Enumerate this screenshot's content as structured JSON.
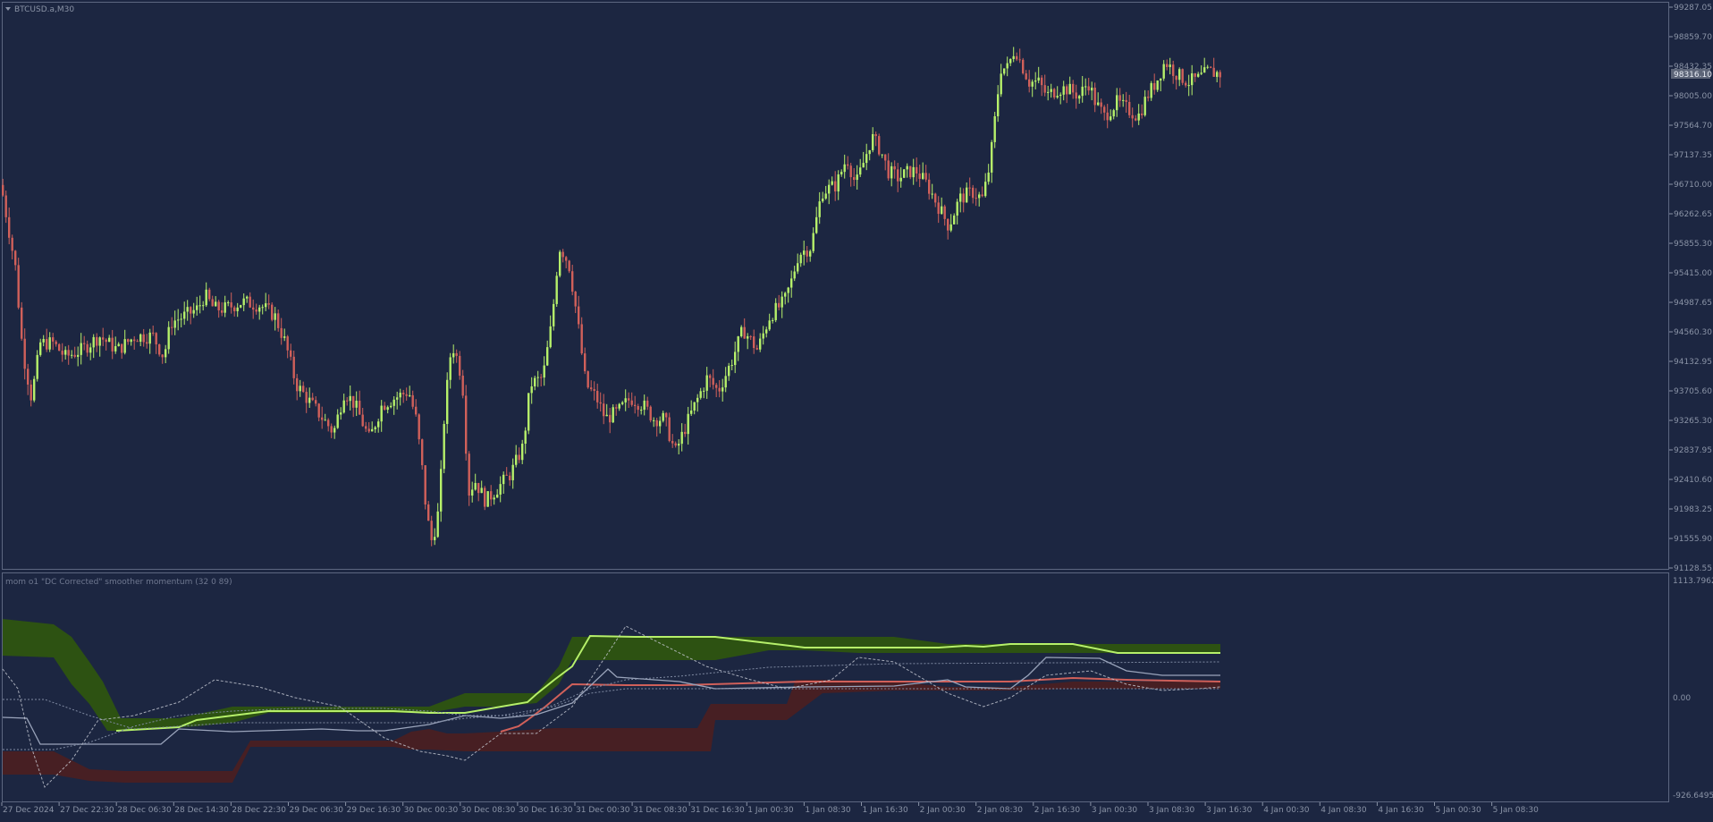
{
  "main": {
    "title": "BTCUSD.a,M30",
    "price_ticks": [
      "99287.05",
      "98859.70",
      "98432.35",
      "98005.00",
      "97564.70",
      "97137.35",
      "96710.00",
      "96262.65",
      "95855.30",
      "95415.00",
      "94987.65",
      "94560.30",
      "94132.95",
      "93705.60",
      "93265.30",
      "92837.95",
      "92410.60",
      "91983.25",
      "91555.90",
      "91128.55"
    ],
    "current_price": "98316.10"
  },
  "indicator": {
    "title": "mom o1 \"DC Corrected\" smoother momentum (32 0 89)",
    "ticks": [
      "1113.7962",
      "0.00",
      "-926.6495"
    ]
  },
  "time_axis": {
    "labels": [
      "27 Dec 2024",
      "27 Dec 22:30",
      "28 Dec 06:30",
      "28 Dec 14:30",
      "28 Dec 22:30",
      "29 Dec 06:30",
      "29 Dec 16:30",
      "30 Dec 00:30",
      "30 Dec 08:30",
      "30 Dec 16:30",
      "31 Dec 00:30",
      "31 Dec 08:30",
      "31 Dec 16:30",
      "1 Jan 00:30",
      "1 Jan 08:30",
      "1 Jan 16:30",
      "2 Jan 00:30",
      "2 Jan 08:30",
      "2 Jan 16:30",
      "3 Jan 00:30",
      "3 Jan 08:30",
      "3 Jan 16:30",
      "4 Jan 00:30",
      "4 Jan 08:30",
      "4 Jan 16:30",
      "5 Jan 00:30",
      "5 Jan 08:30"
    ]
  },
  "colors": {
    "background": "#1c2641",
    "bull": "#b6f06a",
    "bear": "#d0605a",
    "axis_text": "#8a93a6",
    "upper_band": "#2e5410",
    "lower_band": "#4a1f22"
  },
  "chart_data": [
    {
      "type": "candlestick",
      "title": "BTCUSD.a,M30",
      "ylim": [
        91128.55,
        99287.05
      ],
      "x": [
        "27 Dec 2024",
        "27 Dec 22:30",
        "28 Dec 06:30",
        "28 Dec 14:30",
        "28 Dec 22:30",
        "29 Dec 06:30",
        "29 Dec 16:30",
        "30 Dec 00:30",
        "30 Dec 08:30",
        "30 Dec 16:30",
        "31 Dec 00:30",
        "31 Dec 08:30",
        "31 Dec 16:30",
        "1 Jan 00:30",
        "1 Jan 08:30",
        "1 Jan 16:30",
        "2 Jan 00:30",
        "2 Jan 08:30",
        "2 Jan 16:30",
        "3 Jan 00:30",
        "3 Jan 08:30",
        "3 Jan 16:30",
        "4 Jan 00:30",
        "4 Jan 08:30",
        "4 Jan 16:30",
        "5 Jan 00:30",
        "5 Jan 08:30"
      ],
      "close_path": [
        [
          0,
          96700
        ],
        [
          8,
          96100
        ],
        [
          16,
          95500
        ],
        [
          24,
          94300
        ],
        [
          34,
          93600
        ],
        [
          44,
          94400
        ],
        [
          58,
          94400
        ],
        [
          72,
          94200
        ],
        [
          90,
          94300
        ],
        [
          110,
          94500
        ],
        [
          130,
          94300
        ],
        [
          150,
          94500
        ],
        [
          170,
          94500
        ],
        [
          182,
          94200
        ],
        [
          190,
          94700
        ],
        [
          206,
          94800
        ],
        [
          220,
          94900
        ],
        [
          228,
          95100
        ],
        [
          238,
          94900
        ],
        [
          250,
          94900
        ],
        [
          270,
          95000
        ],
        [
          290,
          94950
        ],
        [
          306,
          94800
        ],
        [
          318,
          94400
        ],
        [
          330,
          93800
        ],
        [
          348,
          93500
        ],
        [
          360,
          93300
        ],
        [
          372,
          93100
        ],
        [
          384,
          93700
        ],
        [
          396,
          93500
        ],
        [
          412,
          93000
        ],
        [
          426,
          93500
        ],
        [
          440,
          93600
        ],
        [
          456,
          93700
        ],
        [
          464,
          93300
        ],
        [
          470,
          92700
        ],
        [
          476,
          91900
        ],
        [
          482,
          91500
        ],
        [
          490,
          92000
        ],
        [
          496,
          93400
        ],
        [
          504,
          94400
        ],
        [
          512,
          94100
        ],
        [
          518,
          93600
        ],
        [
          522,
          92200
        ],
        [
          530,
          92400
        ],
        [
          542,
          92100
        ],
        [
          556,
          92300
        ],
        [
          570,
          92500
        ],
        [
          584,
          92900
        ],
        [
          592,
          93800
        ],
        [
          606,
          93900
        ],
        [
          616,
          94700
        ],
        [
          624,
          95800
        ],
        [
          630,
          95700
        ],
        [
          636,
          95500
        ],
        [
          644,
          94800
        ],
        [
          654,
          93800
        ],
        [
          666,
          93600
        ],
        [
          676,
          93300
        ],
        [
          690,
          93400
        ],
        [
          704,
          93600
        ],
        [
          718,
          93500
        ],
        [
          730,
          93300
        ],
        [
          742,
          93300
        ],
        [
          754,
          92800
        ],
        [
          766,
          93200
        ],
        [
          776,
          93500
        ],
        [
          790,
          93900
        ],
        [
          802,
          93700
        ],
        [
          816,
          94100
        ],
        [
          830,
          94600
        ],
        [
          846,
          94300
        ],
        [
          860,
          94800
        ],
        [
          876,
          95000
        ],
        [
          884,
          95300
        ],
        [
          892,
          95700
        ],
        [
          906,
          95800
        ],
        [
          912,
          96200
        ],
        [
          918,
          96600
        ],
        [
          934,
          96700
        ],
        [
          946,
          97100
        ],
        [
          956,
          96700
        ],
        [
          964,
          97000
        ],
        [
          974,
          97400
        ],
        [
          984,
          97200
        ],
        [
          992,
          96900
        ],
        [
          1004,
          96800
        ],
        [
          1016,
          96900
        ],
        [
          1024,
          96900
        ],
        [
          1036,
          96700
        ],
        [
          1048,
          96400
        ],
        [
          1060,
          96100
        ],
        [
          1072,
          96500
        ],
        [
          1086,
          96600
        ],
        [
          1098,
          96500
        ],
        [
          1106,
          97000
        ],
        [
          1112,
          97700
        ],
        [
          1118,
          98400
        ],
        [
          1126,
          98400
        ],
        [
          1134,
          98700
        ],
        [
          1140,
          98500
        ],
        [
          1150,
          98200
        ],
        [
          1160,
          98200
        ],
        [
          1170,
          98000
        ],
        [
          1182,
          98100
        ],
        [
          1192,
          98100
        ],
        [
          1206,
          98000
        ],
        [
          1216,
          98200
        ],
        [
          1224,
          97900
        ],
        [
          1234,
          97700
        ],
        [
          1248,
          97900
        ],
        [
          1260,
          97800
        ],
        [
          1272,
          97700
        ],
        [
          1282,
          98000
        ],
        [
          1292,
          98200
        ],
        [
          1302,
          98500
        ],
        [
          1316,
          98300
        ],
        [
          1328,
          98200
        ],
        [
          1340,
          98250
        ],
        [
          1350,
          98350
        ],
        [
          1364,
          98316
        ]
      ]
    },
    {
      "type": "line",
      "title": "mom o1 \"DC Corrected\" smoother momentum (32 0 89)",
      "ylim": [
        -926.6495,
        1113.7962
      ]
    }
  ]
}
